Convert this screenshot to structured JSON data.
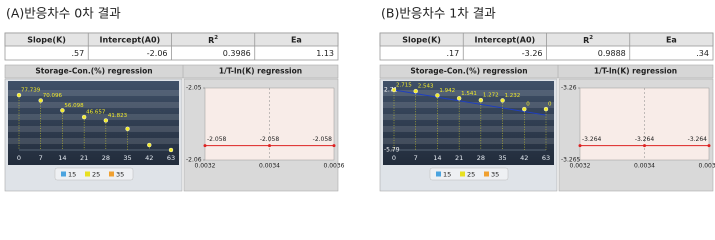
{
  "panels": [
    {
      "title": "(A)반응차수 0차 결과",
      "table": {
        "headers": [
          "Slope(K)",
          "Intercept(A0)",
          {
            "text": "R",
            "sup": "2"
          },
          "Ea"
        ],
        "row": [
          ".57",
          "-2.06",
          "0.3986",
          "1.13"
        ]
      },
      "storage": {
        "title": "Storage-Con.(%) regression",
        "categories": [
          "0",
          "7",
          "14",
          "21",
          "28",
          "35",
          "42",
          "63"
        ],
        "values": [
          77.739,
          70.096,
          56.098,
          46.657,
          41.823,
          30,
          7,
          0
        ],
        "value_labels": [
          "77.739",
          "70.096",
          "56.098",
          "46.657",
          "41.823",
          null,
          null,
          null
        ],
        "ylim": [
          0,
          85
        ],
        "legend": [
          {
            "name": "15",
            "color": "#4aa3df"
          },
          {
            "name": "25",
            "color": "#e8e020"
          },
          {
            "name": "35",
            "color": "#f0a030"
          }
        ]
      },
      "arrhenius": {
        "title": "1/T-ln(K) regression",
        "yticks": [
          -2.05,
          -2.06
        ],
        "x_tick_labels": [
          "0.0032",
          "0.0034",
          "0.0036"
        ],
        "values": [
          -2.058,
          -2.058,
          -2.058
        ]
      }
    },
    {
      "title": "(B)반응차수 1차 결과",
      "table": {
        "headers": [
          "Slope(K)",
          "Intercept(A0)",
          {
            "text": "R",
            "sup": "2"
          },
          "Ea"
        ],
        "row": [
          ".17",
          "-3.26",
          "0.9888",
          ".34"
        ]
      },
      "storage": {
        "title": "Storage-Con.(%) regression",
        "categories": [
          "0",
          "7",
          "14",
          "21",
          "28",
          "35",
          "42",
          "63"
        ],
        "values": [
          2.715,
          2.543,
          1.942,
          1.541,
          1.272,
          1.232,
          0,
          0
        ],
        "value_labels": [
          "2.715",
          "2.543",
          "1.942",
          "1.541",
          "1.272",
          "1.232",
          "0",
          "0"
        ],
        "yticks": [
          2.71,
          -5.79
        ],
        "legend": [
          {
            "name": "15",
            "color": "#4aa3df"
          },
          {
            "name": "25",
            "color": "#e8e020"
          },
          {
            "name": "35",
            "color": "#f0a030"
          }
        ]
      },
      "arrhenius": {
        "title": "1/T-ln(K) regression",
        "yticks": [
          -3.26,
          -3.265
        ],
        "x_tick_labels": [
          "0.0032",
          "0.0034",
          "0.0036"
        ],
        "values": [
          -3.264,
          -3.264,
          -3.264
        ]
      }
    }
  ]
}
